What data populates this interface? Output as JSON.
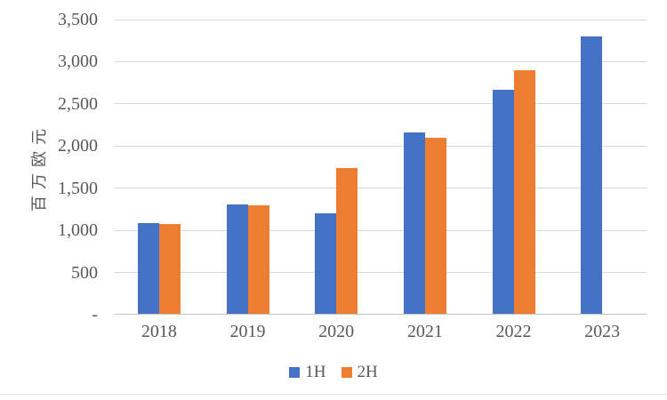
{
  "chart_data": {
    "type": "bar",
    "title": "",
    "xlabel": "",
    "ylabel": "百万欧元",
    "categories": [
      "2018",
      "2019",
      "2020",
      "2021",
      "2022",
      "2023"
    ],
    "series": [
      {
        "name": "1H",
        "color": "#4472C4",
        "values": [
          1080,
          1300,
          1190,
          2150,
          2660,
          3290
        ]
      },
      {
        "name": "2H",
        "color": "#ED7D31",
        "values": [
          1070,
          1290,
          1730,
          2090,
          2890,
          null
        ]
      }
    ],
    "ylim": [
      0,
      3500
    ],
    "yticks": [
      {
        "label": "-",
        "value": 0
      },
      {
        "label": "500",
        "value": 500
      },
      {
        "label": "1,000",
        "value": 1000
      },
      {
        "label": "1,500",
        "value": 1500
      },
      {
        "label": "2,000",
        "value": 2000
      },
      {
        "label": "2,500",
        "value": 2500
      },
      {
        "label": "3,000",
        "value": 3000
      },
      {
        "label": "3,500",
        "value": 3500
      }
    ],
    "grid": true,
    "legend_position": "bottom",
    "colors": {
      "text": "#595959",
      "gridline": "#d9d9d9",
      "axis_line": "#c3c3c3",
      "background": "#ffffff"
    }
  }
}
